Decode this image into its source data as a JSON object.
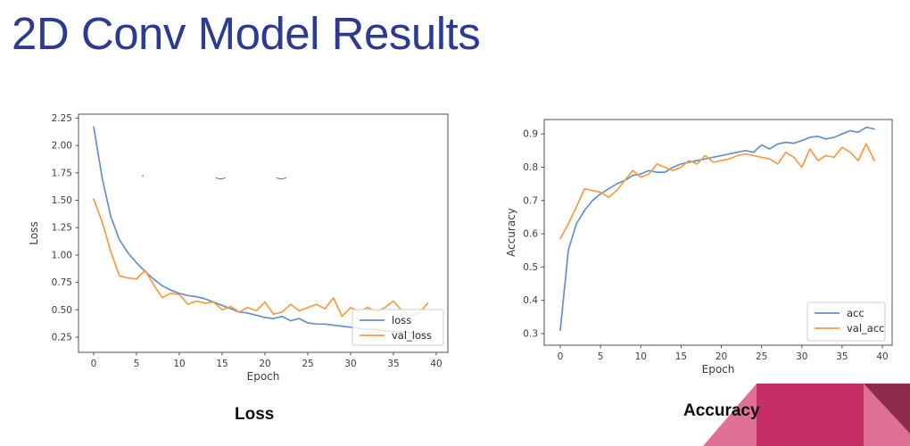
{
  "slide": {
    "title": "2D Conv Model Results"
  },
  "captions": {
    "loss": "Loss",
    "accuracy": "Accuracy"
  },
  "clipped_marks": [
    ".",
    "‿",
    "‿"
  ],
  "colors": {
    "title_blue": "#2c3a92",
    "line_blue": "#5f92cd",
    "line_orange": "#f89b40",
    "axis": "#4f4f4f",
    "tick_text": "#3c3c3c",
    "legend_border": "#cccccc",
    "deco_light": "#e07095",
    "deco_medium": "#c62f66",
    "deco_dark": "#8e2a4a"
  },
  "chart_data": [
    {
      "id": "loss_chart",
      "type": "line",
      "title": "",
      "xlabel": "Epoch",
      "ylabel": "Loss",
      "xlim": [
        -1.8,
        41.8
      ],
      "ylim": [
        0.11,
        2.29
      ],
      "grid": false,
      "legend_position": "lower right",
      "x_ticks": [
        0,
        5,
        10,
        15,
        20,
        25,
        30,
        35,
        40
      ],
      "x_tick_labels": [
        "0",
        "5",
        "10",
        "15",
        "20",
        "25",
        "30",
        "35",
        "40"
      ],
      "y_ticks": [
        0.25,
        0.5,
        0.75,
        1.0,
        1.25,
        1.5,
        1.75,
        2.0,
        2.25
      ],
      "y_tick_labels": [
        "0.25",
        "0.50",
        "0.75",
        "1.00",
        "1.25",
        "1.50",
        "1.75",
        "2.00",
        "2.25"
      ],
      "series": [
        {
          "name": "loss",
          "color": "line_blue",
          "values": [
            2.17,
            1.7,
            1.35,
            1.14,
            1.02,
            0.93,
            0.85,
            0.78,
            0.72,
            0.68,
            0.65,
            0.63,
            0.62,
            0.6,
            0.57,
            0.54,
            0.51,
            0.48,
            0.47,
            0.45,
            0.43,
            0.42,
            0.44,
            0.4,
            0.42,
            0.38,
            0.37,
            0.37,
            0.36,
            0.35,
            0.34,
            0.33,
            0.32,
            0.32,
            0.31,
            0.3,
            0.3,
            0.29,
            0.28,
            0.27
          ]
        },
        {
          "name": "val_loss",
          "color": "line_orange",
          "values": [
            1.51,
            1.3,
            1.03,
            0.81,
            0.79,
            0.78,
            0.86,
            0.73,
            0.61,
            0.65,
            0.64,
            0.55,
            0.58,
            0.56,
            0.57,
            0.5,
            0.53,
            0.48,
            0.52,
            0.49,
            0.57,
            0.46,
            0.48,
            0.55,
            0.49,
            0.52,
            0.55,
            0.51,
            0.61,
            0.44,
            0.52,
            0.48,
            0.52,
            0.48,
            0.52,
            0.58,
            0.49,
            0.45,
            0.47,
            0.56
          ]
        }
      ]
    },
    {
      "id": "accuracy_chart",
      "type": "line",
      "title": "",
      "xlabel": "Epoch",
      "ylabel": "Accuracy",
      "xlim": [
        -2.0,
        41.2
      ],
      "ylim": [
        0.265,
        0.943
      ],
      "grid": false,
      "legend_position": "lower right",
      "x_ticks": [
        0,
        5,
        10,
        15,
        20,
        25,
        30,
        35,
        40
      ],
      "x_tick_labels": [
        "0",
        "5",
        "10",
        "15",
        "20",
        "25",
        "30",
        "35",
        "40"
      ],
      "y_ticks": [
        0.3,
        0.4,
        0.5,
        0.6,
        0.7,
        0.8,
        0.9
      ],
      "y_tick_labels": [
        "0.3",
        "0.4",
        "0.5",
        "0.6",
        "0.7",
        "0.8",
        "0.9"
      ],
      "series": [
        {
          "name": "acc",
          "color": "line_blue",
          "values": [
            0.31,
            0.55,
            0.63,
            0.67,
            0.7,
            0.72,
            0.735,
            0.75,
            0.76,
            0.775,
            0.78,
            0.79,
            0.785,
            0.785,
            0.8,
            0.81,
            0.815,
            0.82,
            0.825,
            0.83,
            0.835,
            0.84,
            0.845,
            0.85,
            0.845,
            0.867,
            0.855,
            0.87,
            0.875,
            0.872,
            0.88,
            0.89,
            0.893,
            0.885,
            0.89,
            0.9,
            0.91,
            0.905,
            0.92,
            0.915
          ]
        },
        {
          "name": "val_acc",
          "color": "line_orange",
          "values": [
            0.585,
            0.63,
            0.68,
            0.735,
            0.73,
            0.725,
            0.71,
            0.73,
            0.76,
            0.79,
            0.77,
            0.78,
            0.81,
            0.8,
            0.79,
            0.8,
            0.82,
            0.81,
            0.835,
            0.815,
            0.82,
            0.825,
            0.835,
            0.84,
            0.835,
            0.83,
            0.825,
            0.81,
            0.845,
            0.83,
            0.8,
            0.855,
            0.82,
            0.835,
            0.83,
            0.86,
            0.845,
            0.82,
            0.87,
            0.82
          ]
        }
      ]
    }
  ]
}
